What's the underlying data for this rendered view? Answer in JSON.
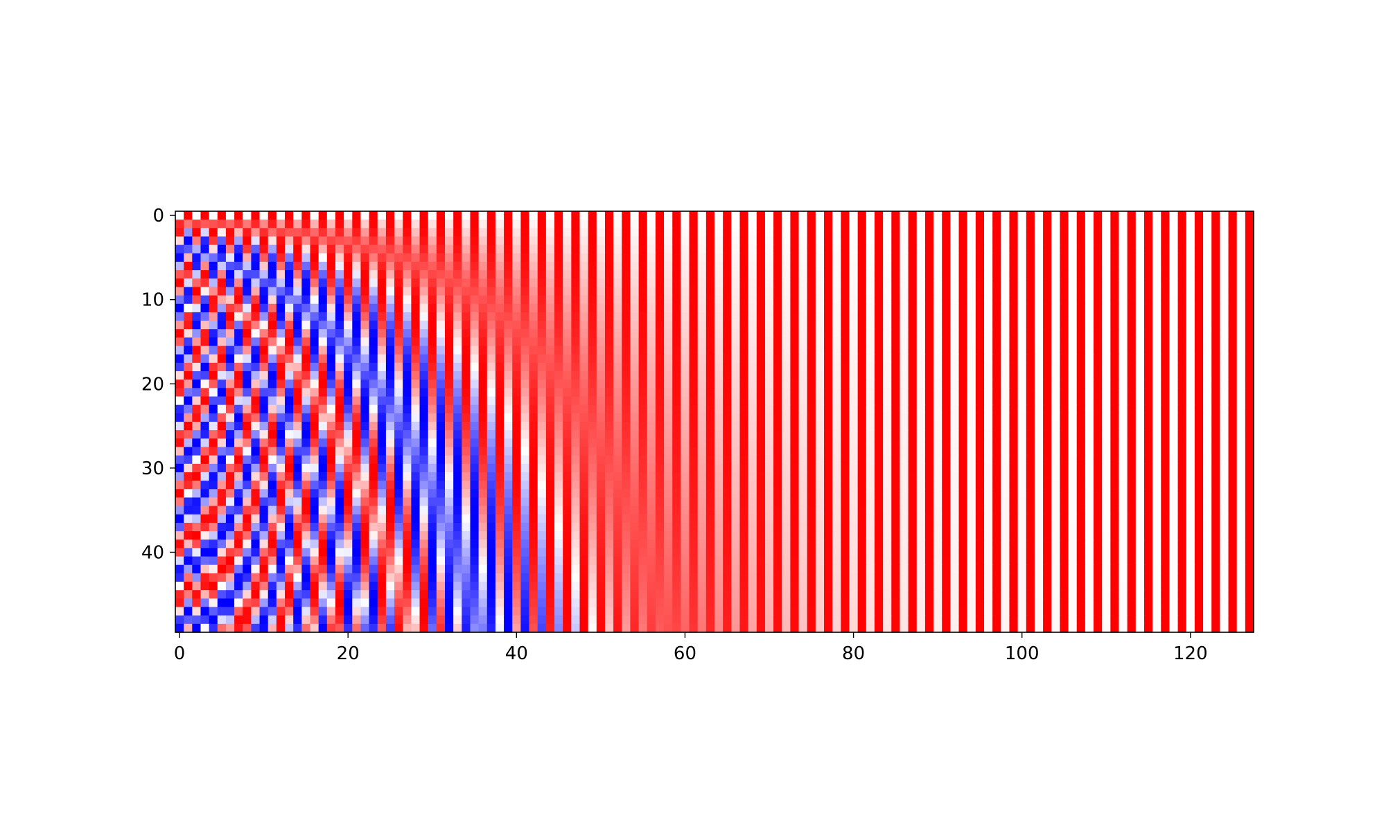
{
  "chart_data": {
    "type": "heatmap",
    "title": "",
    "xlabel": "",
    "ylabel": "",
    "rows": 50,
    "cols": 128,
    "xlim": [
      -0.5,
      127.5
    ],
    "ylim": [
      49.5,
      -0.5
    ],
    "x_ticks": [
      0,
      20,
      40,
      60,
      80,
      100,
      120
    ],
    "x_tick_labels": [
      "0",
      "20",
      "40",
      "60",
      "80",
      "100",
      "120"
    ],
    "y_ticks": [
      0,
      10,
      20,
      30,
      40
    ],
    "y_tick_labels": [
      "0",
      "10",
      "20",
      "30",
      "40"
    ],
    "colormap": "bwr",
    "value_range": [
      -1,
      1
    ],
    "color_low": "#0000ff",
    "color_mid": "#ffffff",
    "color_high": "#ff0000",
    "grid": false,
    "pattern": "sinusoidal positional encoding: even columns sin(row/10000^(c/128)), odd columns cos(row/10000^((c-1)/128))",
    "d_model": 128,
    "base": 10000
  }
}
